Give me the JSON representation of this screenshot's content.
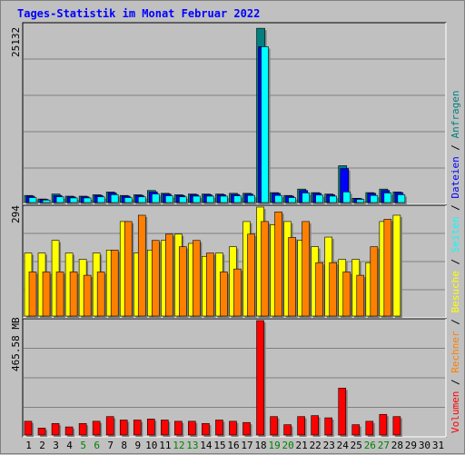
{
  "title": "Tages-Statistik im Monat Februar 2022",
  "colors": {
    "background": "#c0c0c0",
    "title": "#0000ff",
    "grid": "#808080",
    "anfragen": "#008080",
    "dateien": "#0000ff",
    "seiten": "#00ffff",
    "besuche": "#ffff00",
    "rechner": "#ff8000",
    "volumen": "#ff0000",
    "weekend_day": "#008000"
  },
  "chart_data": [
    {
      "type": "bar",
      "panel": "top",
      "ylabel": "25132",
      "ylim": [
        0,
        25132
      ],
      "categories": [
        "1",
        "2",
        "3",
        "4",
        "5",
        "6",
        "7",
        "8",
        "9",
        "10",
        "11",
        "12",
        "13",
        "14",
        "15",
        "16",
        "17",
        "18",
        "19",
        "20",
        "21",
        "22",
        "23",
        "24",
        "25",
        "26",
        "27",
        "28",
        "29",
        "30",
        "31"
      ],
      "series": [
        {
          "name": "Anfragen",
          "color": "#008080",
          "values": [
            1000,
            500,
            1200,
            900,
            900,
            1100,
            1500,
            1000,
            1100,
            1700,
            1300,
            1100,
            1200,
            1200,
            1200,
            1300,
            1300,
            24600,
            1400,
            1000,
            1900,
            1400,
            1200,
            5200,
            600,
            1400,
            1900,
            1500,
            null,
            null,
            null
          ]
        },
        {
          "name": "Dateien",
          "color": "#0000ff",
          "values": [
            900,
            450,
            1000,
            800,
            800,
            1000,
            1350,
            900,
            1000,
            1500,
            1200,
            1000,
            1100,
            1100,
            1100,
            1150,
            1200,
            22000,
            1300,
            900,
            1700,
            1300,
            1100,
            4800,
            550,
            1300,
            1700,
            1400,
            null,
            null,
            null
          ]
        },
        {
          "name": "Seiten",
          "color": "#00ffff",
          "values": [
            700,
            350,
            800,
            650,
            650,
            800,
            1100,
            700,
            800,
            1200,
            950,
            800,
            900,
            900,
            900,
            950,
            1000,
            22000,
            1000,
            700,
            1350,
            1050,
            900,
            1500,
            450,
            1000,
            1350,
            1100,
            null,
            null,
            null
          ]
        }
      ]
    },
    {
      "type": "bar",
      "panel": "middle",
      "ylabel": "294",
      "ylim": [
        0,
        294
      ],
      "categories": [
        "1",
        "2",
        "3",
        "4",
        "5",
        "6",
        "7",
        "8",
        "9",
        "10",
        "11",
        "12",
        "13",
        "14",
        "15",
        "16",
        "17",
        "18",
        "19",
        "20",
        "21",
        "22",
        "23",
        "24",
        "25",
        "26",
        "27",
        "28",
        "29",
        "30",
        "31"
      ],
      "series": [
        {
          "name": "Besuche",
          "color": "#ffff00",
          "values": [
            170,
            170,
            204,
            170,
            153,
            170,
            178,
            255,
            170,
            178,
            204,
            221,
            196,
            161,
            170,
            187,
            255,
            294,
            246,
            255,
            204,
            187,
            213,
            153,
            153,
            144,
            255,
            272,
            null,
            null,
            null
          ]
        },
        {
          "name": "Rechner",
          "color": "#ff8000",
          "values": [
            119,
            119,
            119,
            119,
            110,
            119,
            178,
            255,
            272,
            204,
            221,
            187,
            204,
            170,
            119,
            127,
            221,
            255,
            281,
            212,
            255,
            144,
            144,
            119,
            110,
            187,
            261,
            null,
            null,
            null,
            null
          ]
        }
      ]
    },
    {
      "type": "bar",
      "panel": "bottom",
      "ylabel": "465.58 MB",
      "ylim": [
        0,
        465.58
      ],
      "categories": [
        "1",
        "2",
        "3",
        "4",
        "5",
        "6",
        "7",
        "8",
        "9",
        "10",
        "11",
        "12",
        "13",
        "14",
        "15",
        "16",
        "17",
        "18",
        "19",
        "20",
        "21",
        "22",
        "23",
        "24",
        "25",
        "26",
        "27",
        "28",
        "29",
        "30",
        "31"
      ],
      "series": [
        {
          "name": "Volumen",
          "color": "#ff0000",
          "values": [
            56,
            28,
            47,
            33,
            47,
            56,
            75,
            61,
            61,
            65,
            61,
            56,
            56,
            47,
            61,
            56,
            51,
            465.58,
            75,
            42,
            75,
            79,
            70,
            191,
            42,
            56,
            84,
            75,
            null,
            null,
            null
          ]
        }
      ]
    }
  ],
  "x_labels": [
    {
      "text": "1",
      "weekend": false
    },
    {
      "text": "2",
      "weekend": false
    },
    {
      "text": "3",
      "weekend": false
    },
    {
      "text": "4",
      "weekend": false
    },
    {
      "text": "5",
      "weekend": true
    },
    {
      "text": "6",
      "weekend": true
    },
    {
      "text": "7",
      "weekend": false
    },
    {
      "text": "8",
      "weekend": false
    },
    {
      "text": "9",
      "weekend": false
    },
    {
      "text": "10",
      "weekend": false
    },
    {
      "text": "11",
      "weekend": false
    },
    {
      "text": "12",
      "weekend": true
    },
    {
      "text": "13",
      "weekend": true
    },
    {
      "text": "14",
      "weekend": false
    },
    {
      "text": "15",
      "weekend": false
    },
    {
      "text": "16",
      "weekend": false
    },
    {
      "text": "17",
      "weekend": false
    },
    {
      "text": "18",
      "weekend": false
    },
    {
      "text": "19",
      "weekend": true
    },
    {
      "text": "20",
      "weekend": true
    },
    {
      "text": "21",
      "weekend": false
    },
    {
      "text": "22",
      "weekend": false
    },
    {
      "text": "23",
      "weekend": false
    },
    {
      "text": "24",
      "weekend": false
    },
    {
      "text": "25",
      "weekend": false
    },
    {
      "text": "26",
      "weekend": true
    },
    {
      "text": "27",
      "weekend": true
    },
    {
      "text": "28",
      "weekend": false
    },
    {
      "text": "29",
      "weekend": false
    },
    {
      "text": "30",
      "weekend": false
    },
    {
      "text": "31",
      "weekend": false
    }
  ],
  "legend": {
    "top": [
      "Dateien",
      "Anfragen"
    ],
    "middle": [
      "Besuche",
      "Seiten"
    ],
    "bottom": [
      "Volumen",
      "Rechner"
    ],
    "separator": "/"
  }
}
